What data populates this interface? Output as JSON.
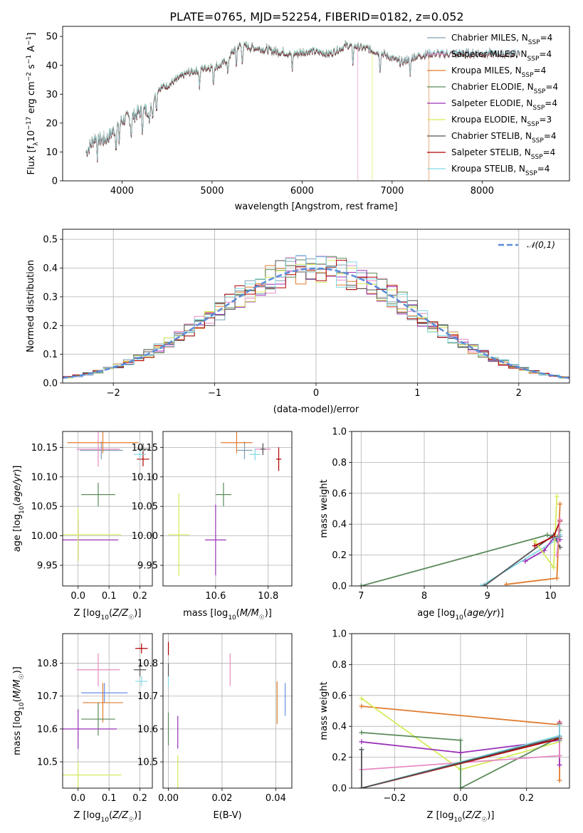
{
  "title": "PLATE=0765, MJD=52254, FIBERID=0182, z=0.052",
  "colors": {
    "chabrier_miles": "#7f9fb0",
    "salpeter_miles": "#e78ac3",
    "kroupa_miles": "#e07b2e",
    "chabrier_elodie": "#5a8a5a",
    "salpeter_elodie": "#9a32b8",
    "kroupa_elodie": "#d4ec5a",
    "chabrier_stelib": "#555555",
    "salpeter_stelib": "#b00000",
    "kroupa_stelib": "#7fd9e6",
    "gauss": "#5b8bd9",
    "blue_extra": "#6b8ee8"
  },
  "chart_data": [
    {
      "id": "spectrum",
      "type": "line",
      "xlabel": "wavelength [Angstrom, rest frame]",
      "ylabel": "Flux [f_λ 10^-17 erg cm^-2 s^-1 A^-1]",
      "xlim": [
        3340,
        8970
      ],
      "ylim": [
        0,
        53.5
      ],
      "xticks": [
        "4000",
        "5000",
        "6000",
        "7000",
        "8000"
      ],
      "yticks": [
        "0",
        "10",
        "20",
        "30",
        "40",
        "50"
      ],
      "legend": "upper right",
      "legend_entries": [
        "Chabrier MILES, N_SSP=4",
        "Salpeter MILES, N_SSP=4",
        "Kroupa MILES, N_SSP=4",
        "Chabrier ELODIE, N_SSP=4",
        "Salpeter ELODIE, N_SSP=4",
        "Kroupa ELODIE, N_SSP=3",
        "Chabrier STELIB, N_SSP=4",
        "Salpeter STELIB, N_SSP=4",
        "Kroupa STELIB, N_SSP=4"
      ],
      "continuum": [
        [
          3600,
          10
        ],
        [
          3700,
          15
        ],
        [
          3800,
          14
        ],
        [
          3900,
          17
        ],
        [
          4000,
          21
        ],
        [
          4100,
          22
        ],
        [
          4200,
          24
        ],
        [
          4300,
          25
        ],
        [
          4400,
          32
        ],
        [
          4500,
          33
        ],
        [
          4700,
          37
        ],
        [
          4900,
          39
        ],
        [
          5100,
          40
        ],
        [
          5300,
          47
        ],
        [
          5500,
          46
        ],
        [
          5700,
          45
        ],
        [
          5900,
          44
        ],
        [
          6100,
          45
        ],
        [
          6300,
          44
        ],
        [
          6500,
          47
        ],
        [
          6700,
          46
        ],
        [
          6900,
          44
        ],
        [
          7100,
          41
        ],
        [
          7250,
          43
        ],
        [
          7400,
          44
        ]
      ],
      "truncations": [
        {
          "model": "kroupa_elodie",
          "x_end": 6780
        },
        {
          "model": "kroupa_miles",
          "x_end": 7410
        },
        {
          "model": "salpeter_miles",
          "x_end": 6620
        }
      ]
    },
    {
      "id": "residuals",
      "type": "line",
      "xlabel": "(data-model)/error",
      "ylabel": "Normed distribution",
      "xlim": [
        -2.5,
        2.5
      ],
      "ylim": [
        0,
        0.535
      ],
      "xticks": [
        "−2",
        "−1",
        "0",
        "1",
        "2"
      ],
      "yticks": [
        "0.0",
        "0.1",
        "0.2",
        "0.3",
        "0.4",
        "0.5"
      ],
      "legend_entries": [
        "𝒩(0,1)"
      ],
      "legend": "upper right",
      "bin_width": 0.1
    },
    {
      "id": "age_vs_Z",
      "type": "scatter",
      "xlabel": "Z [log10(Z/Z☉)]",
      "ylabel": "age [log10(age/yr)]",
      "xlim": [
        -0.05,
        0.24
      ],
      "ylim": [
        9.915,
        10.177
      ],
      "xticks": [
        "0.0",
        "0.1",
        "0.2"
      ],
      "yticks": [
        "9.95",
        "10.00",
        "10.05",
        "10.10",
        "10.15"
      ],
      "points": [
        {
          "model": "chabrier_miles",
          "x": 0.075,
          "y": 10.145,
          "xerr": 0.07,
          "yerr": 0.015
        },
        {
          "model": "salpeter_miles",
          "x": 0.065,
          "y": 10.147,
          "xerr": 0.07,
          "yerr": 0.03
        },
        {
          "model": "kroupa_miles",
          "x": 0.08,
          "y": 10.158,
          "xerr": 0.115,
          "yerr": 0.018
        },
        {
          "model": "chabrier_elodie",
          "x": 0.065,
          "y": 10.07,
          "xerr": 0.055,
          "yerr": 0.02
        },
        {
          "model": "salpeter_elodie",
          "x": 0.0,
          "y": 9.993,
          "xerr": 0.13,
          "yerr": 0.035
        },
        {
          "model": "kroupa_elodie",
          "x": 0.0,
          "y": 10.002,
          "xerr": 0.14,
          "yerr": 0.045
        },
        {
          "model": "chabrier_stelib",
          "x": 0.21,
          "y": 10.147,
          "xerr": 0.02,
          "yerr": 0.01
        },
        {
          "model": "salpeter_stelib",
          "x": 0.21,
          "y": 10.13,
          "xerr": 0.02,
          "yerr": 0.012
        },
        {
          "model": "kroupa_stelib",
          "x": 0.2,
          "y": 10.138,
          "xerr": 0.02,
          "yerr": 0.008
        }
      ]
    },
    {
      "id": "age_vs_mass",
      "type": "scatter",
      "xlabel": "mass [log10(M/M☉)]",
      "ylabel": "",
      "xlim": [
        10.4,
        10.89
      ],
      "ylim": [
        9.915,
        10.177
      ],
      "xticks": [
        "10.6",
        "10.8"
      ],
      "yticks": [
        "9.95",
        "10.00",
        "10.05",
        "10.10",
        "10.15"
      ],
      "points": [
        {
          "model": "chabrier_miles",
          "x": 10.71,
          "y": 10.145,
          "xerr": 0.03,
          "yerr": 0.015
        },
        {
          "model": "salpeter_miles",
          "x": 10.78,
          "y": 10.147,
          "xerr": 0.03,
          "yerr": 0.01
        },
        {
          "model": "kroupa_miles",
          "x": 10.68,
          "y": 10.158,
          "xerr": 0.06,
          "yerr": 0.018
        },
        {
          "model": "chabrier_elodie",
          "x": 10.63,
          "y": 10.07,
          "xerr": 0.03,
          "yerr": 0.02
        },
        {
          "model": "salpeter_elodie",
          "x": 10.6,
          "y": 9.993,
          "xerr": 0.04,
          "yerr": 0.06
        },
        {
          "model": "kroupa_elodie",
          "x": 10.46,
          "y": 10.002,
          "xerr": 0.04,
          "yerr": 0.07
        },
        {
          "model": "chabrier_stelib",
          "x": 10.78,
          "y": 10.147,
          "xerr": 0.01,
          "yerr": 0.01
        },
        {
          "model": "salpeter_stelib",
          "x": 10.84,
          "y": 10.13,
          "xerr": 0.01,
          "yerr": 0.02
        },
        {
          "model": "kroupa_stelib",
          "x": 10.75,
          "y": 10.138,
          "xerr": 0.02,
          "yerr": 0.01
        }
      ]
    },
    {
      "id": "weight_vs_age",
      "type": "line",
      "xlabel": "age [log10(age/yr)]",
      "ylabel": "mass weight",
      "xlim": [
        6.85,
        10.3
      ],
      "ylim": [
        0,
        1.0
      ],
      "xticks": [
        "7",
        "8",
        "9",
        "10"
      ],
      "yticks": [
        "0.0",
        "0.2",
        "0.4",
        "0.6",
        "0.8",
        "1.0"
      ],
      "series": [
        {
          "model": "chabrier_elodie",
          "points": [
            [
              7.0,
              0.0
            ],
            [
              9.95,
              0.33
            ],
            [
              10.1,
              0.31
            ],
            [
              10.15,
              0.36
            ]
          ]
        },
        {
          "model": "kroupa_stelib",
          "points": [
            [
              8.9,
              0.0
            ],
            [
              10.1,
              0.3
            ],
            [
              10.15,
              0.33
            ]
          ]
        },
        {
          "model": "chabrier_stelib",
          "points": [
            [
              8.95,
              0.0
            ],
            [
              10.05,
              0.33
            ],
            [
              10.15,
              0.25
            ]
          ]
        },
        {
          "model": "kroupa_miles",
          "points": [
            [
              9.3,
              0.01
            ],
            [
              10.1,
              0.05
            ],
            [
              10.15,
              0.53
            ]
          ]
        },
        {
          "model": "salpeter_elodie",
          "points": [
            [
              9.6,
              0.16
            ],
            [
              9.9,
              0.23
            ],
            [
              10.05,
              0.31
            ],
            [
              10.15,
              0.3
            ]
          ]
        },
        {
          "model": "kroupa_elodie",
          "points": [
            [
              9.75,
              0.29
            ],
            [
              10.05,
              0.12
            ],
            [
              10.1,
              0.58
            ]
          ]
        },
        {
          "model": "salpeter_stelib",
          "points": [
            [
              9.75,
              0.26
            ],
            [
              10.05,
              0.32
            ],
            [
              10.15,
              0.42
            ]
          ]
        },
        {
          "model": "salpeter_miles",
          "points": [
            [
              10.1,
              0.2
            ],
            [
              10.15,
              0.43
            ]
          ]
        },
        {
          "model": "chabrier_miles",
          "points": [
            [
              10.05,
              0.31
            ],
            [
              10.15,
              0.32
            ]
          ]
        }
      ]
    },
    {
      "id": "mass_vs_Z",
      "type": "scatter",
      "xlabel": "Z [log10(Z/Z☉)]",
      "ylabel": "mass [log10(M/M☉)]",
      "xlim": [
        -0.05,
        0.24
      ],
      "ylim": [
        10.42,
        10.89
      ],
      "xticks": [
        "0.0",
        "0.1",
        "0.2"
      ],
      "yticks": [
        "10.5",
        "10.6",
        "10.7",
        "10.8"
      ],
      "points": [
        {
          "model": "salpeter_miles",
          "x": 0.065,
          "y": 10.78,
          "xerr": 0.07,
          "yerr": 0.05
        },
        {
          "model": "blue_extra",
          "x": 0.085,
          "y": 10.71,
          "xerr": 0.075,
          "yerr": 0.03
        },
        {
          "model": "kroupa_miles",
          "x": 0.08,
          "y": 10.68,
          "xerr": 0.065,
          "yerr": 0.06
        },
        {
          "model": "chabrier_elodie",
          "x": 0.065,
          "y": 10.63,
          "xerr": 0.055,
          "yerr": 0.05
        },
        {
          "model": "salpeter_elodie",
          "x": 0.0,
          "y": 10.6,
          "xerr": 0.125,
          "yerr": 0.06
        },
        {
          "model": "kroupa_elodie",
          "x": 0.0,
          "y": 10.46,
          "xerr": 0.14,
          "yerr": 0.04
        },
        {
          "model": "chabrier_stelib",
          "x": 0.2,
          "y": 10.78,
          "xerr": 0.02,
          "yerr": 0.02
        },
        {
          "model": "salpeter_stelib",
          "x": 0.205,
          "y": 10.845,
          "xerr": 0.02,
          "yerr": 0.015
        },
        {
          "model": "kroupa_stelib",
          "x": 0.205,
          "y": 10.745,
          "xerr": 0.02,
          "yerr": 0.015
        }
      ]
    },
    {
      "id": "mass_vs_ebv",
      "type": "scatter",
      "xlabel": "E(B-V)",
      "ylabel": "",
      "xlim": [
        -0.002,
        0.046
      ],
      "ylim": [
        10.42,
        10.89
      ],
      "xticks": [
        "0.00",
        "0.02",
        "0.04"
      ],
      "yticks": [
        "10.5",
        "10.6",
        "10.7",
        "10.8"
      ],
      "points": [
        {
          "model": "salpeter_stelib",
          "x": 0.0,
          "y": 10.845,
          "xerr": 0,
          "yerr": 0.02
        },
        {
          "model": "chabrier_stelib",
          "x": 0.0,
          "y": 10.78,
          "xerr": 0,
          "yerr": 0.02
        },
        {
          "model": "kroupa_stelib",
          "x": 0.0,
          "y": 10.745,
          "xerr": 0,
          "yerr": 0.015
        },
        {
          "model": "salpeter_miles",
          "x": 0.023,
          "y": 10.78,
          "xerr": 0,
          "yerr": 0.05
        },
        {
          "model": "blue_extra",
          "x": 0.0435,
          "y": 10.69,
          "xerr": 0,
          "yerr": 0.05
        },
        {
          "model": "kroupa_miles",
          "x": 0.0405,
          "y": 10.68,
          "xerr": 0,
          "yerr": 0.065
        },
        {
          "model": "chabrier_elodie",
          "x": 0.0,
          "y": 10.6,
          "xerr": 0,
          "yerr": 0.05
        },
        {
          "model": "salpeter_elodie",
          "x": 0.0035,
          "y": 10.59,
          "xerr": 0,
          "yerr": 0.05
        },
        {
          "model": "kroupa_elodie",
          "x": 0.0035,
          "y": 10.47,
          "xerr": 0,
          "yerr": 0.05
        }
      ]
    },
    {
      "id": "weight_vs_Z",
      "type": "line",
      "xlabel": "Z [log10(Z/Z☉)]",
      "ylabel": "mass weight",
      "xlim": [
        -0.33,
        0.33
      ],
      "ylim": [
        0,
        1.0
      ],
      "xticks": [
        "−0.2",
        "0.0",
        "0.2"
      ],
      "yticks": [
        "0.0",
        "0.2",
        "0.4",
        "0.6",
        "0.8",
        "1.0"
      ],
      "series": [
        {
          "model": "kroupa_miles",
          "points": [
            [
              -0.3,
              0.53
            ],
            [
              0.3,
              0.41
            ],
            [
              0.3,
              0.21
            ],
            [
              0.3,
              0.05
            ]
          ]
        },
        {
          "model": "kroupa_elodie",
          "points": [
            [
              -0.3,
              0.58
            ],
            [
              0.0,
              0.12
            ],
            [
              0.3,
              0.3
            ]
          ]
        },
        {
          "model": "chabrier_elodie",
          "points": [
            [
              -0.3,
              0.36
            ],
            [
              0.0,
              0.31
            ],
            [
              0.0,
              0.0
            ],
            [
              0.3,
              0.33
            ]
          ]
        },
        {
          "model": "salpeter_elodie",
          "points": [
            [
              -0.3,
              0.3
            ],
            [
              0.0,
              0.23
            ],
            [
              0.3,
              0.31
            ],
            [
              0.3,
              0.15
            ]
          ]
        },
        {
          "model": "salpeter_miles",
          "points": [
            [
              -0.3,
              0.12
            ],
            [
              0.3,
              0.21
            ],
            [
              0.3,
              0.43
            ]
          ]
        },
        {
          "model": "salpeter_stelib",
          "points": [
            [
              -0.3,
              0.0
            ],
            [
              0.3,
              0.32
            ],
            [
              0.3,
              0.42
            ]
          ]
        },
        {
          "model": "kroupa_stelib",
          "points": [
            [
              -0.3,
              0.25
            ],
            [
              -0.3,
              0.0
            ],
            [
              0.3,
              0.34
            ],
            [
              0.3,
              0.41
            ]
          ]
        },
        {
          "model": "chabrier_stelib",
          "points": [
            [
              -0.3,
              0.25
            ],
            [
              -0.3,
              0.0
            ],
            [
              0.3,
              0.33
            ]
          ]
        },
        {
          "model": "chabrier_miles",
          "points": [
            [
              0.3,
              0.31
            ],
            [
              0.3,
              0.33
            ]
          ]
        }
      ]
    }
  ]
}
